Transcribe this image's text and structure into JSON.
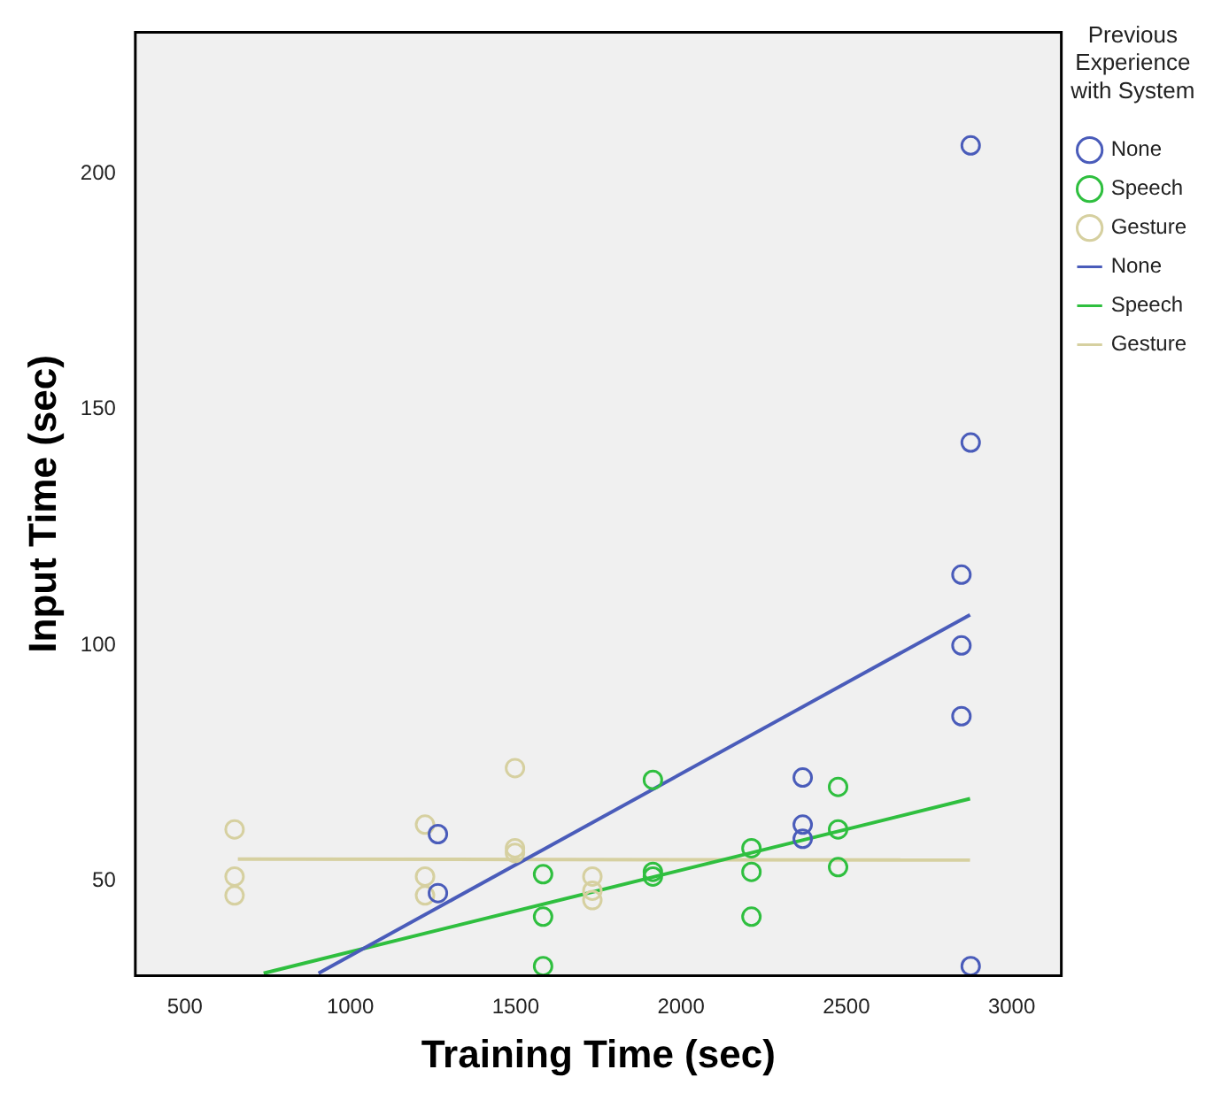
{
  "chart_data": {
    "type": "scatter",
    "xlabel": "Training Time (sec)",
    "ylabel": "Input Time (sec)",
    "legend_title": "Previous Experience with System",
    "legend": "right",
    "marker": "circle",
    "grid": false,
    "xlim": [
      350,
      3150
    ],
    "xticks": [
      500,
      1000,
      1500,
      2000,
      2500,
      3000
    ],
    "ylim": [
      30,
      230
    ],
    "yticks": [
      50,
      100,
      150,
      200
    ],
    "series": [
      {
        "name": "None",
        "color": "#4a5cba",
        "x": [
          1265,
          1265,
          2368,
          2368,
          2368,
          2848,
          2848,
          2848,
          2876,
          2876,
          2876
        ],
        "values": [
          60,
          47.5,
          72,
          62,
          59,
          115,
          100,
          85,
          206,
          143,
          32
        ]
      },
      {
        "name": "Speech",
        "color": "#2fbf3f",
        "x": [
          1583,
          1583,
          1583,
          1915,
          1915,
          1915,
          2213,
          2213,
          2213,
          2475,
          2475,
          2475
        ],
        "values": [
          51.5,
          42.5,
          32,
          71.5,
          52,
          51,
          57,
          52,
          42.5,
          70,
          61,
          53
        ]
      },
      {
        "name": "Gesture",
        "color": "#d6d0a0",
        "x": [
          650,
          650,
          650,
          1226,
          1226,
          1226,
          1498,
          1498,
          1498,
          1732,
          1732,
          1732
        ],
        "values": [
          61,
          51,
          47,
          62,
          51,
          47,
          74,
          57,
          56,
          51,
          48,
          46
        ]
      },
      {
        "name": "None",
        "type": "line",
        "marker": "none",
        "color": "#4a5cba",
        "x": [
          904,
          2874
        ],
        "values": [
          30.5,
          106.5
        ]
      },
      {
        "name": "Speech",
        "type": "line",
        "marker": "none",
        "color": "#2fbf3f",
        "x": [
          738,
          2874
        ],
        "values": [
          30.5,
          67.5
        ]
      },
      {
        "name": "Gesture",
        "type": "line",
        "marker": "none",
        "color": "#d6d0a0",
        "x": [
          660,
          2874
        ],
        "values": [
          54.7,
          54.5
        ]
      }
    ]
  }
}
